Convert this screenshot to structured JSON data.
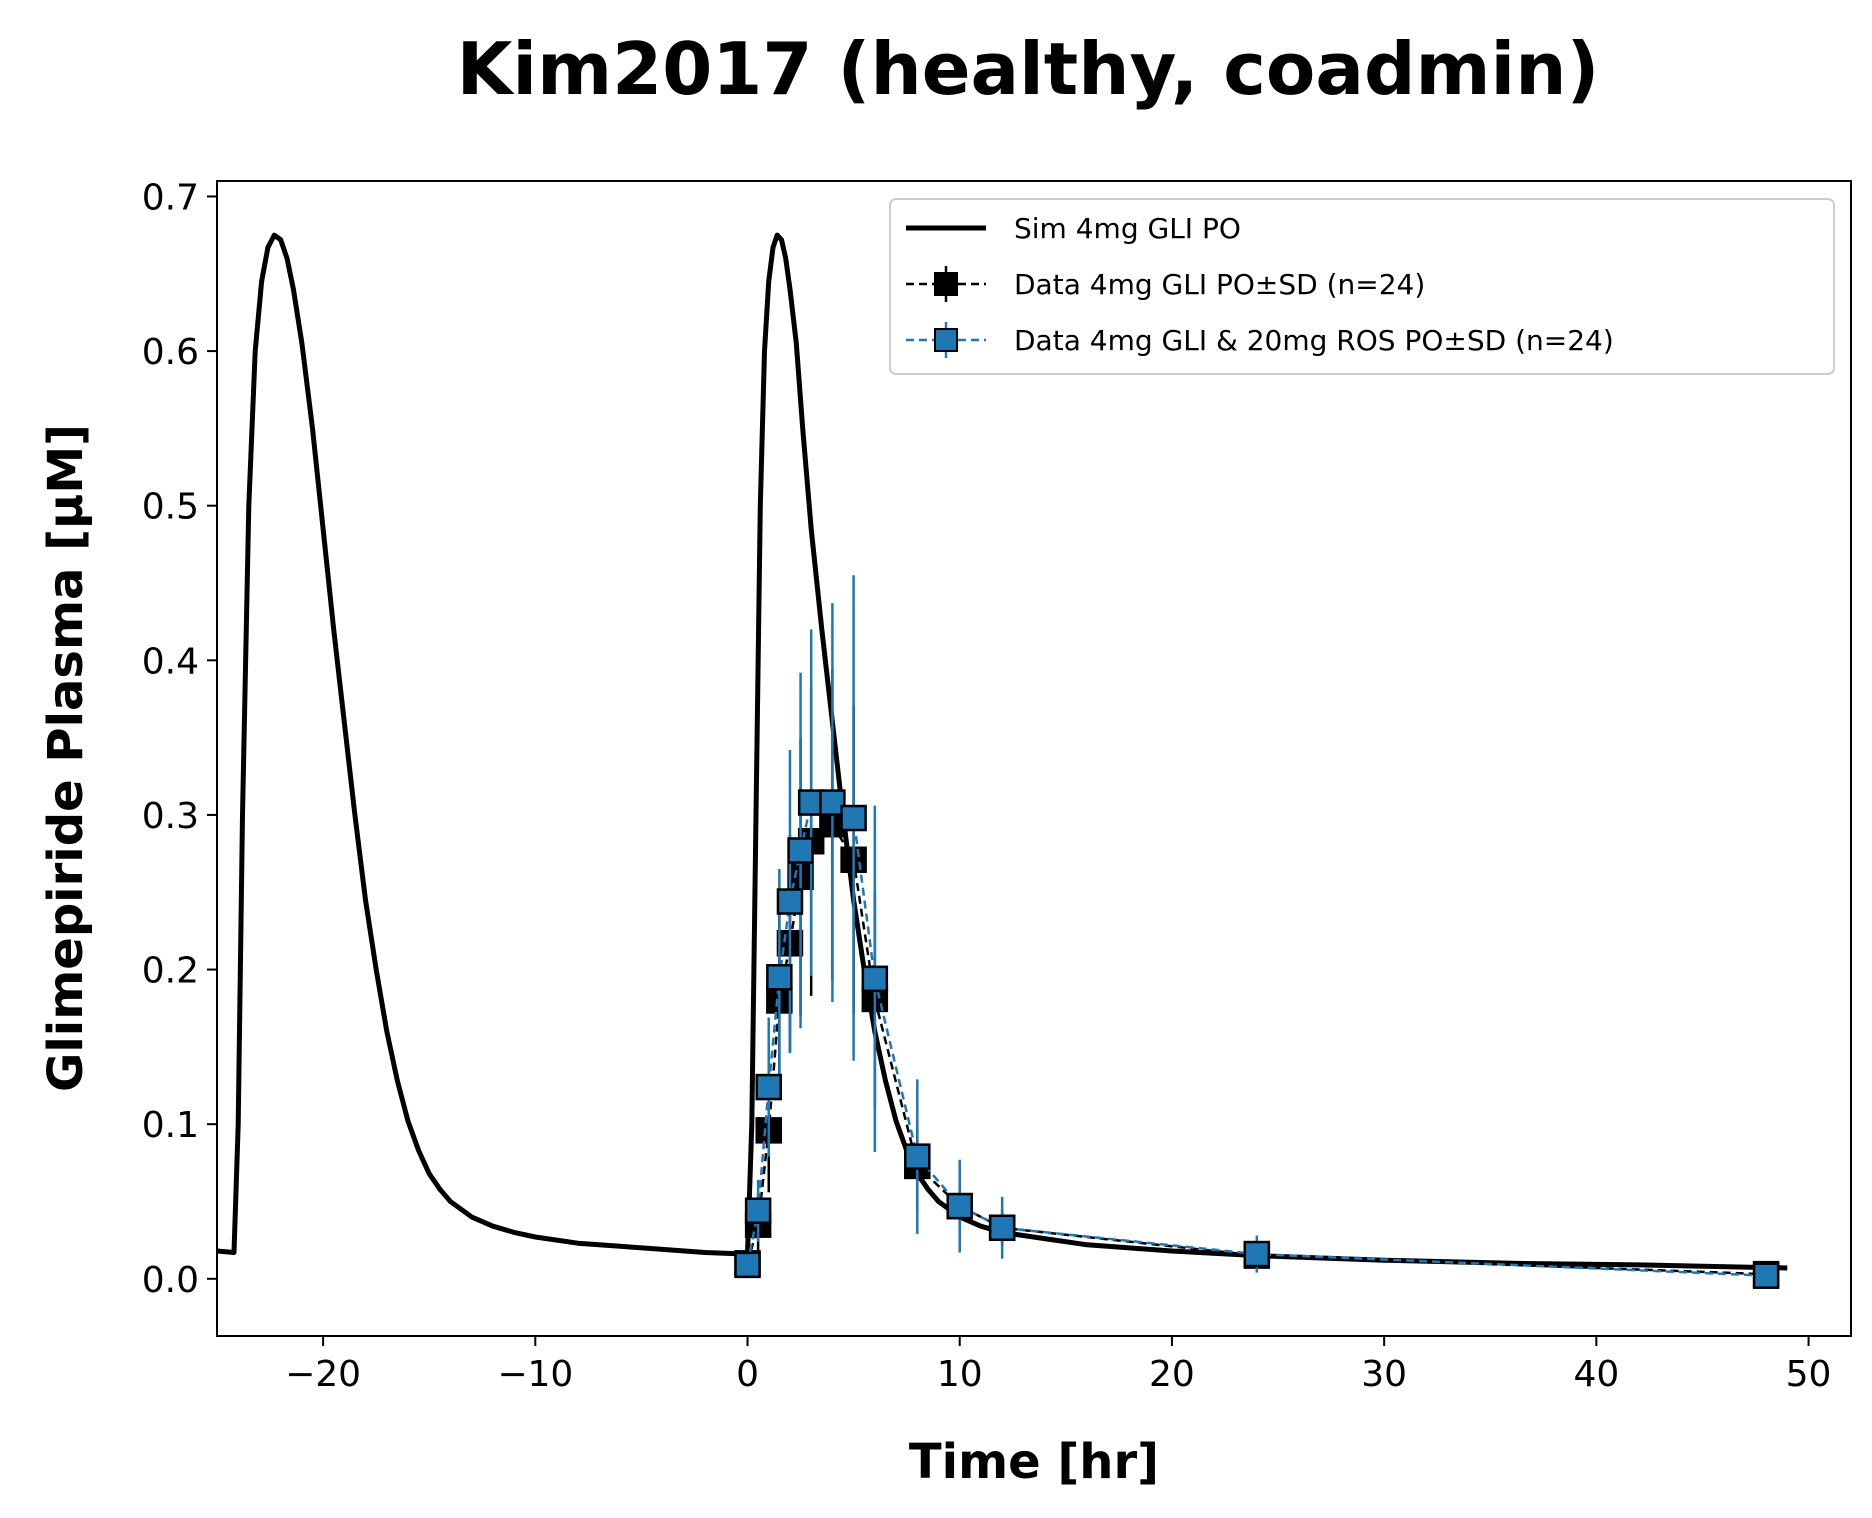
{
  "chart_data": {
    "type": "line",
    "title": "Kim2017 (healthy, coadmin)",
    "xlabel": "Time [hr]",
    "ylabel": "Glimepiride Plasma [µM]",
    "xlim": [
      -25,
      52
    ],
    "ylim": [
      -0.037,
      0.71
    ],
    "xticks": [
      -20,
      -10,
      0,
      10,
      20,
      30,
      40,
      50
    ],
    "xtick_labels": [
      "−20",
      "−10",
      "0",
      "10",
      "20",
      "30",
      "40",
      "50"
    ],
    "yticks": [
      0.0,
      0.1,
      0.2,
      0.3,
      0.4,
      0.5,
      0.6,
      0.7
    ],
    "ytick_labels": [
      "0.0",
      "0.1",
      "0.2",
      "0.3",
      "0.4",
      "0.5",
      "0.6",
      "0.7"
    ],
    "grid": false,
    "legend_position": "top-right",
    "series": [
      {
        "name": "Sim 4mg GLI PO",
        "kind": "line",
        "color": "#000000",
        "x": [
          -25,
          -24.2,
          -24.0,
          -23.8,
          -23.5,
          -23.2,
          -22.9,
          -22.6,
          -22.3,
          -22.0,
          -21.7,
          -21.4,
          -21.0,
          -20.5,
          -20.0,
          -19.5,
          -19.0,
          -18.5,
          -18.0,
          -17.5,
          -17.0,
          -16.5,
          -16.0,
          -15.5,
          -15.0,
          -14.5,
          -14.0,
          -13.0,
          -12.0,
          -11.0,
          -10.0,
          -8.0,
          -6.0,
          -4.0,
          -2.0,
          0.0,
          0.2,
          0.4,
          0.6,
          0.8,
          1.0,
          1.2,
          1.4,
          1.6,
          1.8,
          2.0,
          2.3,
          2.6,
          3.0,
          3.5,
          4.0,
          4.5,
          5.0,
          5.5,
          6.0,
          6.5,
          7.0,
          7.5,
          8.0,
          8.5,
          9.0,
          10.0,
          11.0,
          12.0,
          14.0,
          16.0,
          18.0,
          20.0,
          24.0,
          30.0,
          36.0,
          42.0,
          49.0
        ],
        "y": [
          0.018,
          0.017,
          0.1,
          0.3,
          0.5,
          0.6,
          0.645,
          0.667,
          0.675,
          0.672,
          0.66,
          0.64,
          0.605,
          0.55,
          0.485,
          0.42,
          0.36,
          0.3,
          0.245,
          0.2,
          0.16,
          0.128,
          0.102,
          0.083,
          0.068,
          0.058,
          0.05,
          0.04,
          0.034,
          0.03,
          0.027,
          0.023,
          0.021,
          0.019,
          0.017,
          0.016,
          0.1,
          0.3,
          0.5,
          0.6,
          0.645,
          0.667,
          0.675,
          0.672,
          0.66,
          0.64,
          0.605,
          0.55,
          0.485,
          0.42,
          0.36,
          0.3,
          0.245,
          0.2,
          0.16,
          0.128,
          0.102,
          0.083,
          0.068,
          0.058,
          0.05,
          0.04,
          0.034,
          0.03,
          0.026,
          0.022,
          0.02,
          0.018,
          0.015,
          0.012,
          0.01,
          0.009,
          0.007
        ]
      },
      {
        "name": "Data 4mg GLI PO±SD (n=24)",
        "kind": "errorbar",
        "color": "#000000",
        "x": [
          0,
          0.5,
          1,
          1.5,
          2,
          2.5,
          3,
          4,
          5,
          6,
          8,
          10,
          12,
          24,
          48
        ],
        "y": [
          0.01,
          0.035,
          0.096,
          0.18,
          0.217,
          0.26,
          0.283,
          0.294,
          0.271,
          0.181,
          0.073,
          0.047,
          0.033,
          0.015,
          0.003
        ],
        "sd": [
          0.005,
          0.02,
          0.04,
          0.06,
          0.07,
          0.09,
          0.1,
          0.1,
          0.1,
          0.07,
          0.03,
          0.015,
          0.012,
          0.007,
          0.002
        ]
      },
      {
        "name": "Data 4mg GLI & 20mg ROS PO±SD (n=24)",
        "kind": "errorbar",
        "color": "#1f77b4",
        "x": [
          0,
          0.5,
          1,
          1.5,
          2,
          2.5,
          3,
          4,
          5,
          6,
          8,
          10,
          12,
          24,
          48
        ],
        "y": [
          0.009,
          0.044,
          0.124,
          0.195,
          0.244,
          0.277,
          0.308,
          0.308,
          0.298,
          0.194,
          0.079,
          0.047,
          0.033,
          0.016,
          0.002
        ],
        "sd": [
          0.008,
          0.02,
          0.045,
          0.07,
          0.098,
          0.115,
          0.112,
          0.129,
          0.157,
          0.112,
          0.05,
          0.03,
          0.02,
          0.012,
          0.002
        ]
      }
    ]
  },
  "legend": {
    "items": [
      "Sim 4mg GLI PO",
      "Data 4mg GLI PO±SD (n=24)",
      "Data 4mg GLI & 20mg ROS PO±SD (n=24)"
    ]
  }
}
